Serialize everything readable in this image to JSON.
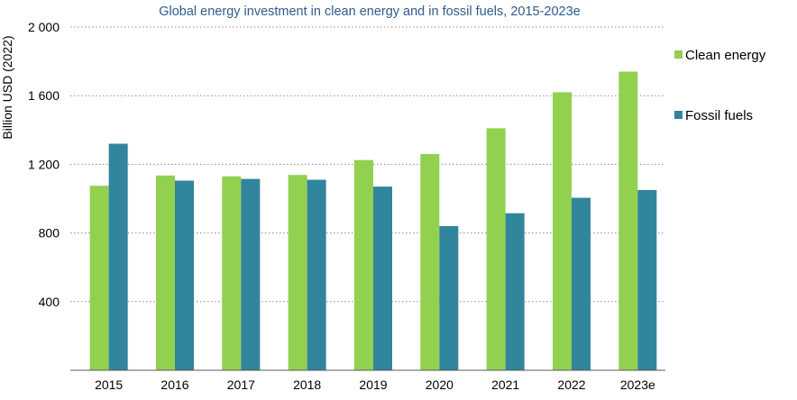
{
  "chart_data": {
    "type": "bar",
    "title": "Global energy investment in clean energy and in fossil fuels, 2015-2023e",
    "ylabel": "Billion USD (2022)",
    "xlabel": "",
    "categories": [
      "2015",
      "2016",
      "2017",
      "2018",
      "2019",
      "2020",
      "2021",
      "2022",
      "2023e"
    ],
    "series": [
      {
        "name": "Clean energy",
        "color": "#92d050",
        "values": [
          1075,
          1135,
          1130,
          1138,
          1225,
          1260,
          1410,
          1620,
          1740
        ]
      },
      {
        "name": "Fossil fuels",
        "color": "#31859c",
        "values": [
          1320,
          1105,
          1115,
          1110,
          1070,
          840,
          915,
          1005,
          1050
        ]
      }
    ],
    "ylim": [
      0,
      2000
    ],
    "yticks": [
      400,
      800,
      1200,
      1600,
      2000
    ],
    "ytick_labels": [
      "400",
      "800",
      "1 200",
      "1 600",
      "2 000"
    ],
    "grid": true,
    "legend_position": "right"
  }
}
